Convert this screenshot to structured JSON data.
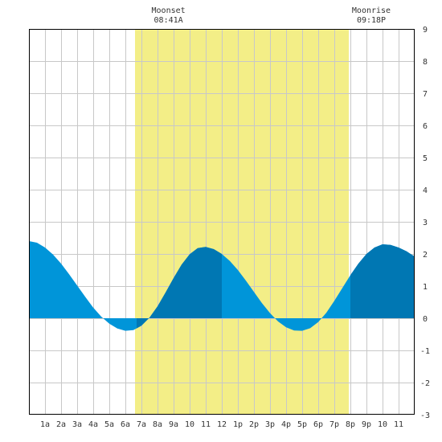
{
  "chart_data": {
    "type": "area",
    "title": "",
    "xlabel": "",
    "ylabel": "",
    "xlim": [
      0,
      24
    ],
    "ylim": [
      -3,
      9
    ],
    "grid": true,
    "x_ticks": [
      "1a",
      "2a",
      "3a",
      "4a",
      "5a",
      "6a",
      "7a",
      "8a",
      "9a",
      "10",
      "11",
      "12",
      "1p",
      "2p",
      "3p",
      "4p",
      "5p",
      "6p",
      "7p",
      "8p",
      "9p",
      "10",
      "11"
    ],
    "y_ticks": [
      "-3",
      "-2",
      "-1",
      "0",
      "1",
      "2",
      "3",
      "4",
      "5",
      "6",
      "7",
      "8",
      "9"
    ],
    "daylight": {
      "start_hour": 6.6,
      "end_hour": 19.9
    },
    "series": [
      {
        "x": [
          0,
          0.5,
          1,
          1.5,
          2,
          2.5,
          3,
          3.5,
          4,
          4.5,
          5,
          5.5,
          6,
          6.5,
          7,
          7.5,
          8,
          8.5,
          9,
          9.5,
          10,
          10.5,
          11,
          11.5,
          12,
          12.5,
          13,
          13.5,
          14,
          14.5,
          15,
          15.5,
          16,
          16.5,
          17,
          17.5,
          18,
          18.5,
          19,
          19.5,
          20,
          20.5,
          21,
          21.5,
          22,
          22.5,
          23,
          23.5,
          24
        ],
        "values": [
          2.4,
          2.35,
          2.2,
          1.98,
          1.7,
          1.37,
          1.02,
          0.67,
          0.33,
          0.05,
          -0.17,
          -0.32,
          -0.39,
          -0.37,
          -0.23,
          0.02,
          0.37,
          0.8,
          1.25,
          1.67,
          1.99,
          2.18,
          2.22,
          2.15,
          2.0,
          1.78,
          1.5,
          1.17,
          0.82,
          0.47,
          0.16,
          -0.1,
          -0.28,
          -0.38,
          -0.39,
          -0.31,
          -0.12,
          0.17,
          0.54,
          0.94,
          1.34,
          1.7,
          2.0,
          2.2,
          2.3,
          2.28,
          2.2,
          2.08,
          1.92
        ]
      }
    ],
    "annotations": [
      {
        "label": "Moonset",
        "time": "08:41A",
        "hour": 8.68
      },
      {
        "label": "Moonrise",
        "time": "09:18P",
        "hour": 21.3
      }
    ],
    "colors": {
      "daylight": "#f3ee87",
      "fill_light": "#0095d9",
      "fill_dark": "#0077b3",
      "grid": "#c8c8c8",
      "border": "#000000"
    }
  }
}
